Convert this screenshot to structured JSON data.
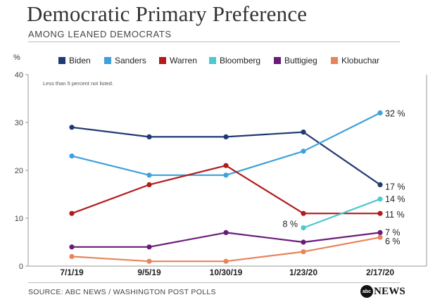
{
  "header": {
    "title": "Democratic Primary Preference",
    "subtitle": "AMONG LEANED DEMOCRATS"
  },
  "footer": {
    "source": "SOURCE: ABC NEWS / WASHINGTON POST POLLS",
    "logo_badge": "abc",
    "logo_text": "NEWS"
  },
  "chart_data": {
    "type": "line",
    "title": "Democratic Primary Preference",
    "subtitle": "AMONG LEANED DEMOCRATS",
    "ylabel": "%",
    "xlabel": "",
    "ylim": [
      0,
      40
    ],
    "yticks": [
      0,
      10,
      20,
      30,
      40
    ],
    "grid": false,
    "legend_position": "top",
    "note": "Less than 5 percent not listed.",
    "categories": [
      "7/1/19",
      "9/5/19",
      "10/30/19",
      "1/23/20",
      "2/17/20"
    ],
    "series": [
      {
        "name": "Biden",
        "color": "#1f3a73",
        "values": [
          29,
          27,
          27,
          28,
          17
        ],
        "end_label": "17 %"
      },
      {
        "name": "Sanders",
        "color": "#3ea0dc",
        "values": [
          23,
          19,
          19,
          24,
          32
        ],
        "end_label": "32 %"
      },
      {
        "name": "Warren",
        "color": "#b31b1b",
        "values": [
          11,
          17,
          21,
          11,
          11
        ],
        "end_label": "11 %"
      },
      {
        "name": "Bloomberg",
        "color": "#4cc8cf",
        "values": [
          null,
          null,
          null,
          8,
          14
        ],
        "end_label": "14 %",
        "start_label": "8 %"
      },
      {
        "name": "Buttigieg",
        "color": "#6a1b7a",
        "values": [
          4,
          4,
          7,
          5,
          7
        ],
        "end_label": "7 %"
      },
      {
        "name": "Klobuchar",
        "color": "#e8845a",
        "values": [
          2,
          1,
          1,
          3,
          6
        ],
        "end_label": "6 %"
      }
    ]
  }
}
